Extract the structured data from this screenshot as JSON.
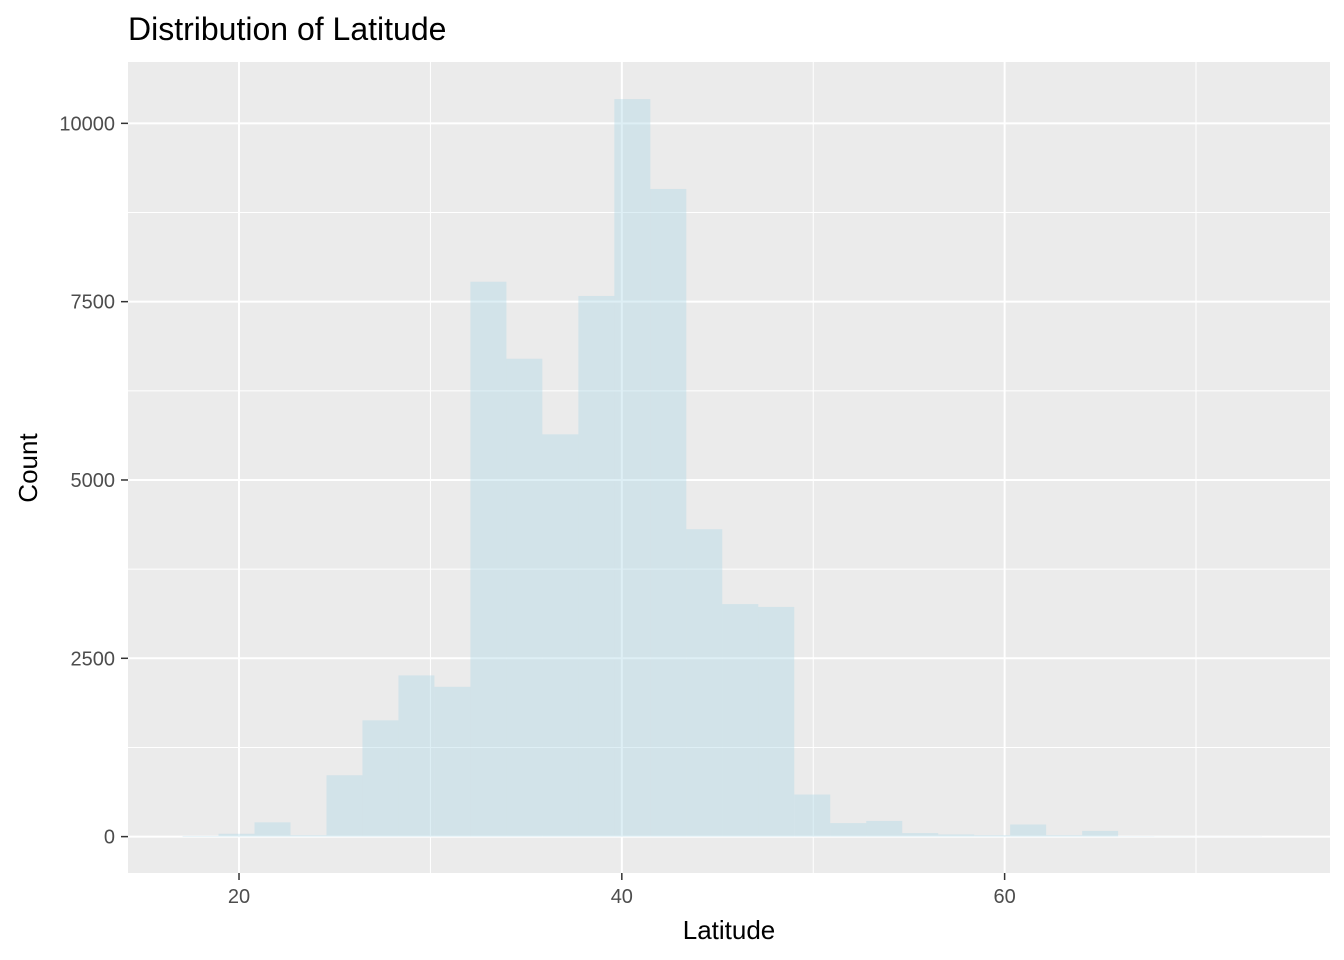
{
  "chart_data": {
    "type": "bar",
    "title": "Distribution of Latitude",
    "xlabel": "Latitude",
    "ylabel": "Count",
    "xlim": [
      14.2,
      77.0
    ],
    "ylim": [
      -510,
      10860
    ],
    "x_ticks": [
      20,
      40,
      60
    ],
    "x_minor_ticks": [
      30,
      50,
      70
    ],
    "y_ticks": [
      0,
      2500,
      5000,
      7500,
      10000
    ],
    "y_minor_ticks": [
      1250,
      3750,
      6250,
      8750
    ],
    "grid": true,
    "bar_fill": "#ADD8E6",
    "bar_opacity": 0.4,
    "bins": [
      {
        "x0": 17.05,
        "x1": 18.93,
        "count": 10
      },
      {
        "x0": 18.93,
        "x1": 20.81,
        "count": 40
      },
      {
        "x0": 20.81,
        "x1": 22.69,
        "count": 200
      },
      {
        "x0": 22.69,
        "x1": 24.57,
        "count": 20
      },
      {
        "x0": 24.57,
        "x1": 26.45,
        "count": 860
      },
      {
        "x0": 26.45,
        "x1": 28.33,
        "count": 1630
      },
      {
        "x0": 28.33,
        "x1": 30.21,
        "count": 2260
      },
      {
        "x0": 30.21,
        "x1": 32.09,
        "count": 2100
      },
      {
        "x0": 32.09,
        "x1": 33.97,
        "count": 7780
      },
      {
        "x0": 33.97,
        "x1": 35.85,
        "count": 6700
      },
      {
        "x0": 35.85,
        "x1": 37.73,
        "count": 5640
      },
      {
        "x0": 37.73,
        "x1": 39.61,
        "count": 7580
      },
      {
        "x0": 39.61,
        "x1": 41.49,
        "count": 10340
      },
      {
        "x0": 41.49,
        "x1": 43.37,
        "count": 9080
      },
      {
        "x0": 43.37,
        "x1": 45.25,
        "count": 4310
      },
      {
        "x0": 45.25,
        "x1": 47.13,
        "count": 3260
      },
      {
        "x0": 47.13,
        "x1": 49.01,
        "count": 3220
      },
      {
        "x0": 49.01,
        "x1": 50.89,
        "count": 590
      },
      {
        "x0": 50.89,
        "x1": 52.77,
        "count": 190
      },
      {
        "x0": 52.77,
        "x1": 54.65,
        "count": 220
      },
      {
        "x0": 54.65,
        "x1": 56.53,
        "count": 50
      },
      {
        "x0": 56.53,
        "x1": 58.41,
        "count": 30
      },
      {
        "x0": 58.41,
        "x1": 60.29,
        "count": 20
      },
      {
        "x0": 60.29,
        "x1": 62.17,
        "count": 170
      },
      {
        "x0": 62.17,
        "x1": 64.05,
        "count": 20
      },
      {
        "x0": 64.05,
        "x1": 65.93,
        "count": 80
      },
      {
        "x0": 65.93,
        "x1": 67.81,
        "count": 5
      },
      {
        "x0": 67.81,
        "x1": 69.69,
        "count": 3
      },
      {
        "x0": 69.69,
        "x1": 71.57,
        "count": 2
      },
      {
        "x0": 71.57,
        "x1": 73.45,
        "count": 2
      }
    ]
  }
}
